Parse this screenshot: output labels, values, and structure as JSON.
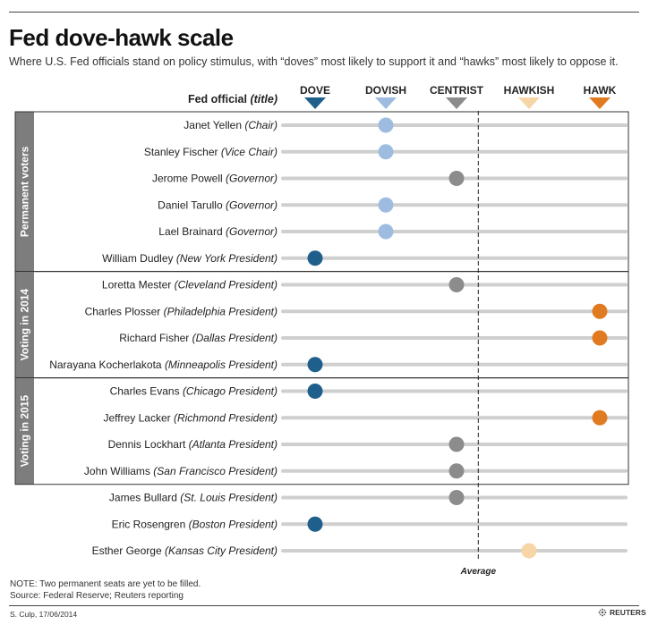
{
  "title": "Fed dove-hawk scale",
  "subtitle": "Where U.S. Fed officials stand on policy stimulus, with “doves” most likely to support it and “hawks” most likely to oppose it.",
  "header": {
    "official_label": "Fed official",
    "official_suffix": "(title)"
  },
  "colors": {
    "dove": "#1f5f8b",
    "dovish": "#9dbce0",
    "centrist": "#8c8c8c",
    "hawkish": "#f7d5a6",
    "hawk": "#e07b22",
    "track": "#cfcfcf",
    "group_band": "#7d7d7d"
  },
  "chart_data": {
    "type": "scatter",
    "title": "Fed dove-hawk scale",
    "scale": [
      "DOVE",
      "DOVISH",
      "CENTRIST",
      "HAWKISH",
      "HAWK"
    ],
    "average_label": "Average",
    "average_position": 2.3,
    "groups": [
      {
        "label": "Permanent voters",
        "rows": [
          0,
          5
        ]
      },
      {
        "label": "Voting in 2014",
        "rows": [
          6,
          9
        ]
      },
      {
        "label": "Voting in 2015",
        "rows": [
          10,
          13
        ]
      }
    ],
    "officials": [
      {
        "name": "Janet Yellen",
        "title": "(Chair)",
        "position": 1
      },
      {
        "name": "Stanley Fischer",
        "title": "(Vice Chair)",
        "position": 1
      },
      {
        "name": "Jerome Powell",
        "title": "(Governor)",
        "position": 2
      },
      {
        "name": "Daniel Tarullo",
        "title": "(Governor)",
        "position": 1
      },
      {
        "name": "Lael Brainard",
        "title": "(Governor)",
        "position": 1
      },
      {
        "name": "William Dudley",
        "title": "(New York President)",
        "position": 0
      },
      {
        "name": "Loretta Mester",
        "title": "(Cleveland President)",
        "position": 2
      },
      {
        "name": "Charles Plosser",
        "title": "(Philadelphia President)",
        "position": 4
      },
      {
        "name": "Richard Fisher",
        "title": "(Dallas President)",
        "position": 4
      },
      {
        "name": "Narayana Kocherlakota",
        "title": "(Minneapolis President)",
        "position": 0
      },
      {
        "name": "Charles Evans",
        "title": "(Chicago President)",
        "position": 0
      },
      {
        "name": "Jeffrey Lacker",
        "title": "(Richmond President)",
        "position": 4
      },
      {
        "name": "Dennis Lockhart",
        "title": "(Atlanta President)",
        "position": 2
      },
      {
        "name": "John Williams",
        "title": "(San Francisco President)",
        "position": 2
      },
      {
        "name": "James Bullard",
        "title": "(St. Louis President)",
        "position": 2
      },
      {
        "name": "Eric Rosengren",
        "title": "(Boston President)",
        "position": 0
      },
      {
        "name": "Esther George",
        "title": "(Kansas City President)",
        "position": 3
      }
    ]
  },
  "footer": {
    "note": "NOTE: Two permanent seats are yet to be filled.",
    "source": "Source: Federal Reserve; Reuters reporting",
    "credit": "S. Culp, 17/06/2014",
    "logo": "REUTERS"
  }
}
